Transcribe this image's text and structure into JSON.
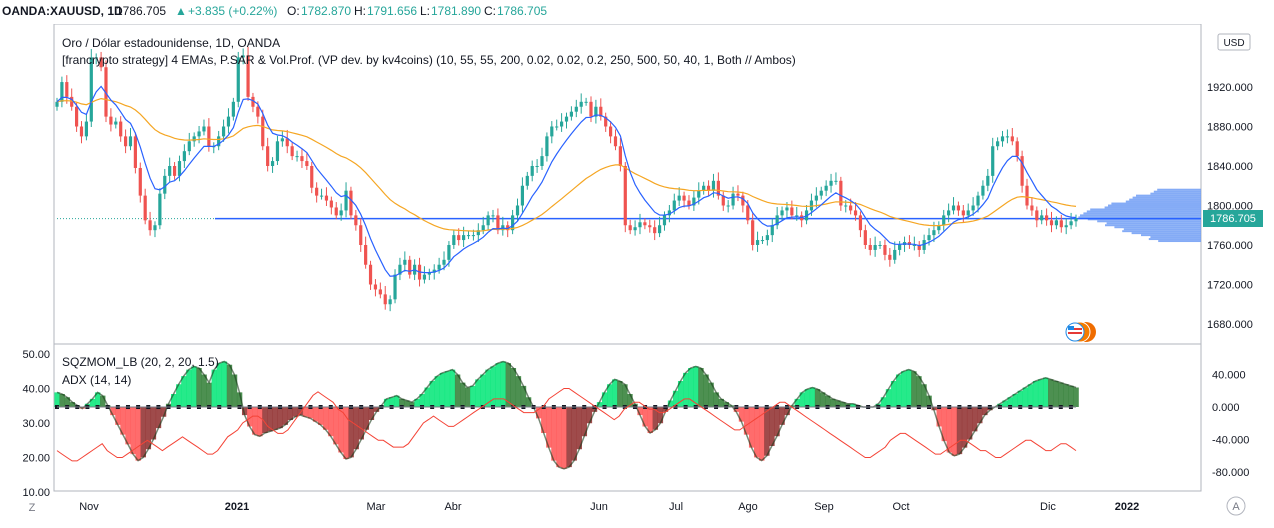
{
  "header": {
    "symbol": "OANDA:XAUUSD, 1D",
    "last": "1786.705",
    "change": "+3.835 (+0.22%)",
    "open_label": "O:",
    "open": "1782.870",
    "high_label": "H:",
    "high": "1791.656",
    "low_label": "L:",
    "low": "1781.890",
    "close_label": "C:",
    "close": "1786.705"
  },
  "main_pane": {
    "title": "Oro / Dólar estadounidense, 1D, OANDA",
    "indicator": "[francrypto\u0003 strategy] 4 EMAs, P.SAR & Vol.Prof. (VP dev. by kv4coins) (10, 55, 55, 200, 0.02, 0.02, 0.2, 250, 500, 50, 40, 1, Both // Ambos)",
    "currency": "USD",
    "price_ticks": [
      "1920.000",
      "1880.000",
      "1840.000",
      "1800.000",
      "1760.000",
      "1720.000",
      "1680.000"
    ],
    "last_price_label": "1786.705"
  },
  "lower_pane": {
    "indicator1": "SQZMOM_LB (20, 2, 20, 1.5)",
    "indicator2": "ADX (14, 14)",
    "right_ticks": [
      "40.000",
      "0.000",
      "-40.000",
      "-80.000"
    ],
    "left_ticks": [
      "50.00",
      "40.00",
      "30.00",
      "20.00",
      "10.00"
    ]
  },
  "time_axis": {
    "labels": [
      "Nov",
      "2021",
      "Mar",
      "Abr",
      "Jun",
      "Jul",
      "Ago",
      "Sep",
      "Oct",
      "Dic",
      "2022"
    ]
  },
  "corner_left": "Z",
  "corner_right": "A",
  "colors": {
    "up": "#26a69a",
    "down": "#ef5350",
    "ema_fast": "#2962ff",
    "ema_slow": "#f5a623",
    "poc": "#2962ff",
    "volume_profile": "#6f9cf5",
    "sqz_pos": "#00e676",
    "sqz_neg": "#ff5252",
    "adx": "#f44336",
    "last_price_bg": "#26a69a"
  },
  "chart_data": [
    {
      "type": "candlestick",
      "title": "Oro / Dólar estadounidense, 1D, OANDA",
      "x_start": "2020-10-20",
      "x_end": "2021-12-10",
      "ylim": [
        1670,
        1960
      ],
      "series": [
        {
          "name": "XAUUSD",
          "close": [
            1905,
            1925,
            1910,
            1900,
            1880,
            1870,
            1885,
            1950,
            1950,
            1940,
            1890,
            1882,
            1885,
            1870,
            1860,
            1870,
            1838,
            1810,
            1785,
            1775,
            1780,
            1812,
            1830,
            1840,
            1830,
            1845,
            1855,
            1865,
            1870,
            1875,
            1880,
            1860,
            1860,
            1870,
            1880,
            1890,
            1905,
            1950,
            1952,
            1910,
            1900,
            1890,
            1860,
            1840,
            1845,
            1865,
            1868,
            1860,
            1850,
            1850,
            1845,
            1840,
            1818,
            1810,
            1810,
            1805,
            1798,
            1790,
            1795,
            1815,
            1790,
            1780,
            1760,
            1740,
            1720,
            1715,
            1710,
            1700,
            1705,
            1730,
            1740,
            1745,
            1730,
            1740,
            1725,
            1730,
            1732,
            1735,
            1740,
            1745,
            1760,
            1770,
            1765,
            1770,
            1770,
            1770,
            1775,
            1780,
            1790,
            1790,
            1775,
            1780,
            1775,
            1790,
            1800,
            1820,
            1830,
            1840,
            1840,
            1850,
            1870,
            1880,
            1880,
            1885,
            1890,
            1895,
            1900,
            1905,
            1905,
            1890,
            1900,
            1890,
            1880,
            1870,
            1860,
            1840,
            1780,
            1775,
            1778,
            1783,
            1780,
            1778,
            1772,
            1780,
            1790,
            1795,
            1805,
            1810,
            1805,
            1800,
            1808,
            1815,
            1820,
            1815,
            1825,
            1810,
            1800,
            1800,
            1812,
            1810,
            1800,
            1785,
            1760,
            1765,
            1765,
            1770,
            1780,
            1790,
            1795,
            1798,
            1790,
            1790,
            1785,
            1795,
            1805,
            1810,
            1815,
            1820,
            1825,
            1825,
            1800,
            1800,
            1795,
            1790,
            1775,
            1760,
            1755,
            1760,
            1760,
            1750,
            1745,
            1755,
            1760,
            1763,
            1760,
            1760,
            1755,
            1765,
            1770,
            1775,
            1780,
            1790,
            1795,
            1800,
            1795,
            1790,
            1795,
            1800,
            1810,
            1820,
            1830,
            1860,
            1865,
            1870,
            1870,
            1865,
            1850,
            1820,
            1800,
            1795,
            1785,
            1790,
            1785,
            1780,
            1785,
            1778,
            1780,
            1784,
            1786.705
          ]
        }
      ]
    },
    {
      "type": "line",
      "name_of_pane": "ADX (14, 14)",
      "ylim": [
        10,
        50
      ],
      "series": [
        {
          "name": "ADX",
          "values": [
            22,
            21,
            20,
            19,
            19,
            20,
            21,
            22,
            23,
            24,
            22,
            21,
            20,
            20,
            21,
            22,
            23,
            24,
            25,
            24,
            23,
            22,
            23,
            24,
            25,
            26,
            25,
            24,
            23,
            22,
            21,
            21,
            22,
            24,
            26,
            27,
            28,
            30,
            31,
            32,
            32,
            31,
            29,
            28,
            27,
            27,
            28,
            30,
            32,
            34,
            36,
            38,
            39,
            38,
            37,
            36,
            34,
            33,
            31,
            30,
            29,
            28,
            27,
            26,
            25,
            25,
            24,
            23,
            23,
            23,
            24,
            26,
            28,
            30,
            31,
            32,
            31,
            30,
            29,
            29,
            30,
            31,
            32,
            33,
            34,
            35,
            36,
            37,
            37,
            37,
            36,
            35,
            34,
            33,
            33,
            33,
            34,
            35,
            37,
            38,
            39,
            40,
            40,
            39,
            38,
            37,
            36,
            35,
            34,
            33,
            32,
            31,
            32,
            34,
            35,
            36,
            36,
            35,
            34,
            34,
            33,
            33,
            34,
            35,
            36,
            37,
            37,
            36,
            35,
            34,
            33,
            32,
            31,
            30,
            29,
            28,
            28,
            29,
            30,
            31,
            32,
            33,
            34,
            35,
            36,
            36,
            35,
            34,
            33,
            32,
            31,
            30,
            29,
            28,
            27,
            26,
            25,
            24,
            23,
            22,
            21,
            20,
            20,
            21,
            22,
            23,
            25,
            26,
            27,
            27,
            26,
            25,
            24,
            23,
            22,
            21,
            21,
            22,
            23,
            24,
            25,
            25,
            24,
            23,
            22,
            22,
            21,
            20,
            20,
            21,
            22,
            23,
            24,
            25,
            25,
            24,
            23,
            22,
            22,
            23,
            24,
            24,
            23,
            22
          ]
        }
      ]
    },
    {
      "type": "area",
      "name_of_pane": "SQZMOM_LB (20, 2, 20, 1.5)",
      "ylim": [
        -95,
        70
      ],
      "series": [
        {
          "name": "SQZMOM",
          "values": [
            18,
            16,
            12,
            6,
            2,
            -2,
            4,
            10,
            18,
            14,
            2,
            -10,
            -22,
            -34,
            -46,
            -58,
            -66,
            -62,
            -52,
            -40,
            -26,
            -12,
            4,
            16,
            28,
            38,
            46,
            50,
            48,
            40,
            30,
            46,
            54,
            56,
            52,
            40,
            18,
            -10,
            -24,
            -34,
            -36,
            -32,
            -30,
            -28,
            -26,
            -22,
            -16,
            -12,
            -10,
            -12,
            -14,
            -18,
            -22,
            -28,
            -36,
            -46,
            -56,
            -64,
            -62,
            -52,
            -40,
            -28,
            -16,
            -6,
            2,
            10,
            12,
            14,
            10,
            8,
            6,
            10,
            16,
            24,
            32,
            38,
            42,
            44,
            46,
            40,
            30,
            24,
            26,
            34,
            40,
            46,
            50,
            54,
            56,
            54,
            48,
            38,
            26,
            12,
            0,
            -14,
            -32,
            -50,
            -66,
            -74,
            -76,
            -74,
            -66,
            -52,
            -36,
            -20,
            -6,
            6,
            18,
            28,
            34,
            32,
            28,
            16,
            4,
            -10,
            -24,
            -32,
            -28,
            -20,
            -6,
            8,
            20,
            32,
            42,
            48,
            50,
            48,
            40,
            30,
            18,
            10,
            6,
            2,
            -6,
            -18,
            -34,
            -50,
            -62,
            -66,
            -60,
            -48,
            -36,
            -22,
            -10,
            2,
            10,
            18,
            22,
            24,
            22,
            18,
            14,
            10,
            8,
            6,
            4,
            4,
            2,
            0,
            0,
            0,
            4,
            12,
            22,
            32,
            40,
            44,
            46,
            44,
            38,
            28,
            14,
            -4,
            -24,
            -42,
            -56,
            -60,
            -58,
            -50,
            -40,
            -30,
            -20,
            -10,
            -4,
            0,
            4,
            8,
            12,
            16,
            20,
            24,
            28,
            32,
            34,
            36,
            34,
            32,
            30,
            28,
            26,
            24
          ]
        }
      ]
    }
  ]
}
